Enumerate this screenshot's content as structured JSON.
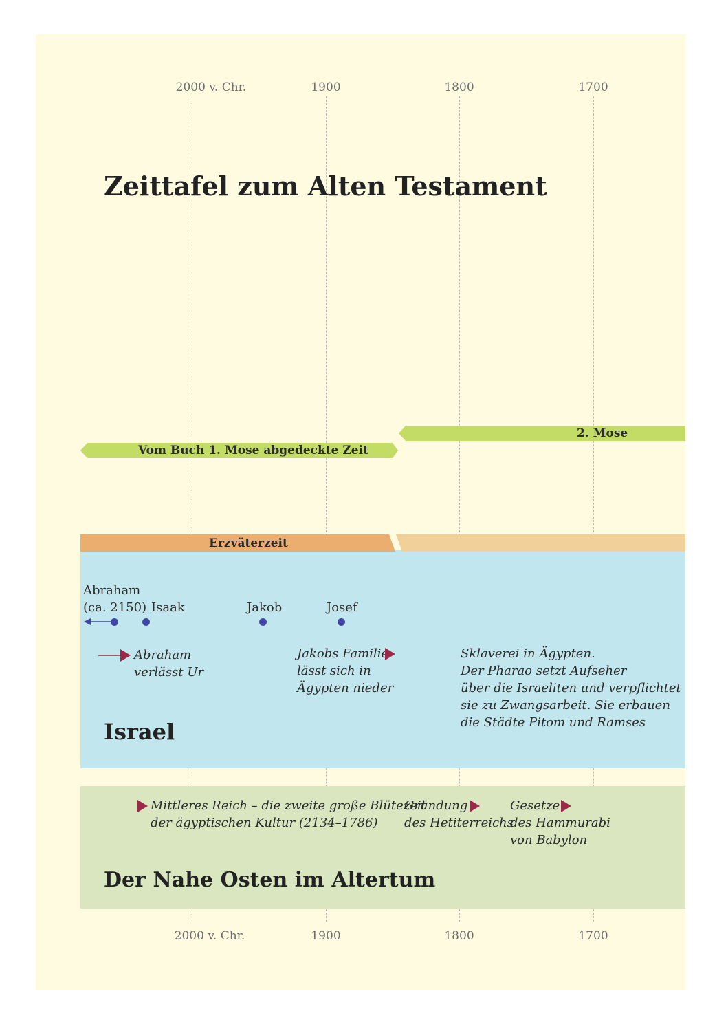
{
  "title": "Zeittafel zum Alten Testament",
  "axis": {
    "top_ticks": [
      "2000 v. Chr.",
      "1900",
      "1800",
      "1700"
    ],
    "bottom_ticks": [
      "2000 v. Chr.",
      "1900",
      "1800",
      "1700"
    ]
  },
  "books": {
    "genesis_label": "Vom Buch 1. Mose abgedeckte Zeit",
    "exodus_label": "2. Mose"
  },
  "eras": {
    "patriarchs_label": "Erzväterzeit"
  },
  "israel": {
    "heading": "Israel",
    "persons": {
      "abraham_name": "Abraham",
      "abraham_date": "(ca. 2150)",
      "isaak": "Isaak",
      "jakob": "Jakob",
      "josef": "Josef"
    },
    "events": {
      "abraham_leaves": [
        "Abraham",
        "verlässt Ur"
      ],
      "jacob_family": [
        "Jakobs Familie",
        "lässt sich in",
        "Ägypten nieder"
      ],
      "slavery": [
        "Sklaverei in Ägypten.",
        "Der Pharao setzt Aufseher",
        "über die Israeliten und verpflichtet",
        "sie zu Zwangsarbeit. Sie erbauen",
        "die Städte Pitom und Ramses"
      ]
    }
  },
  "near_east": {
    "heading": "Der Nahe Osten im Altertum",
    "events": {
      "middle_kingdom": [
        "Mittleres Reich – die zweite große Blütezeit",
        "der ägyptischen Kultur (2134–1786)"
      ],
      "hittites": [
        "Gründung",
        "des Hetiterreichs"
      ],
      "hammurabi": [
        "Gesetze",
        "des Hammurabi",
        "von Babylon"
      ]
    }
  },
  "colors": {
    "page_bg": "#fefbe0",
    "green_bar": "#c3dc66",
    "orange_bar": "#ecae6e",
    "light_orange_bar": "#f1d09a",
    "israel_band": "#c2e6ed",
    "near_east_band": "#d9e6c0",
    "dot": "#3f46a8",
    "triangle": "#9b2a48"
  }
}
